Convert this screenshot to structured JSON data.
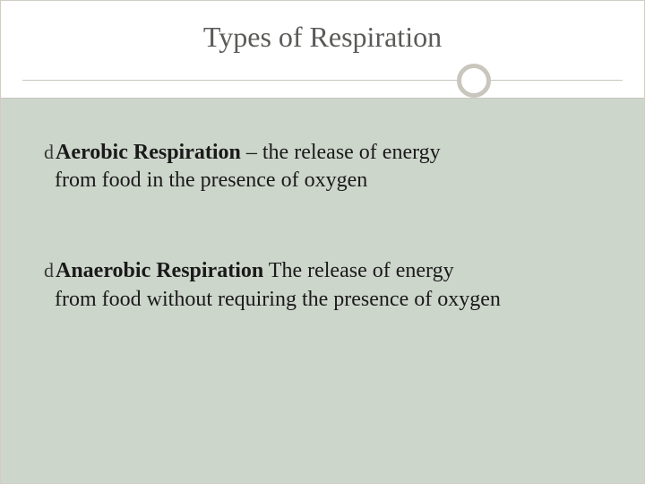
{
  "slide": {
    "title": "Types of Respiration",
    "title_color": "#5a5a58",
    "title_fontsize": 32,
    "background_top": "#ffffff",
    "background_bottom": "#cdd6cb",
    "divider_color": "#c9c6bd",
    "ring_border_color": "#c9c6bd",
    "bullet_glyph": "d",
    "body_fontsize": 24,
    "body_color": "#1a1a1a",
    "bullets": [
      {
        "term": "Aerobic Respiration",
        "separator": " – ",
        "definition_line1": "the release of energy",
        "definition_line2": "from food in the presence of oxygen"
      },
      {
        "term": "Anaerobic Respiration",
        "separator": " ",
        "definition_line1": "The release of energy",
        "definition_line2": "from food without requiring the presence of oxygen"
      }
    ]
  }
}
